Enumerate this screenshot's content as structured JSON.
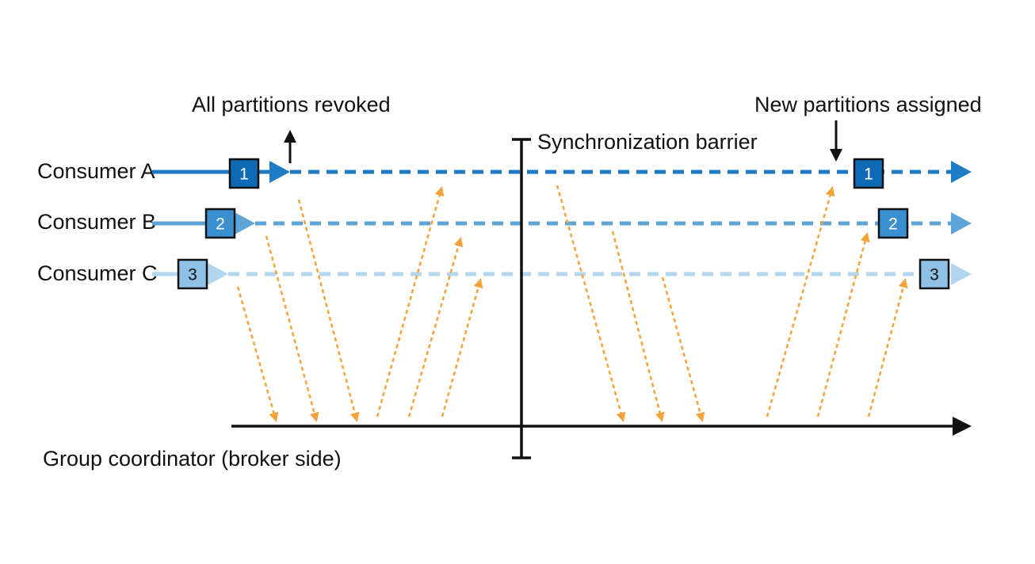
{
  "consumers": [
    {
      "label": "Consumer A",
      "badge": "1",
      "color": "#1f7bc4",
      "badge_color": "#0f6ab5"
    },
    {
      "label": "Consumer B",
      "badge": "2",
      "color": "#5ea4d8",
      "badge_color": "#3a8fd0"
    },
    {
      "label": "Consumer C",
      "badge": "3",
      "color": "#b3d5ee",
      "badge_color": "#8fc1e7"
    }
  ],
  "annotations": {
    "revoked": "All partitions revoked",
    "assigned": "New partitions assigned",
    "barrier": "Synchronization barrier",
    "coordinator": "Group coordinator (broker side)"
  },
  "colors": {
    "message_arrow": "#f5a23c",
    "axis": "#111111"
  }
}
